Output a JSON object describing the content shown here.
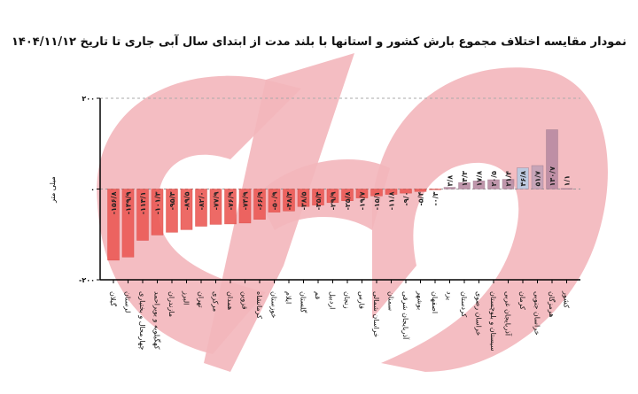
{
  "title": "نمودار مقایسه اختلاف مجموع بارش کشور و استانها با بلند مدت از ابتدای سال آبی جاری تا تاریخ ۱۴۰۴/۱۱/۱۲",
  "chart_data": {
    "type": "bar",
    "title": "نمودار مقایسه اختلاف مجموع بارش کشور و استانها با بلند مدت از ابتدای سال آبی جاری تا تاریخ ۱۴۰۴/۱۱/۱۲",
    "ylabel": "میلی متر",
    "xlabel": "",
    "ylim": [
      -200,
      200
    ],
    "yticks": [
      200,
      0,
      -200
    ],
    "ytick_labels": [
      "۲۰۰",
      "۰",
      "-۲۰۰"
    ],
    "grid": "dashed at 200 and 0",
    "categories": [
      "گیلان",
      "لرستان",
      "چهارمحال و بختیاری",
      "کهگیلویه و بویراحمد",
      "مازندران",
      "البرز",
      "تهران",
      "مرکزی",
      "همدان",
      "قزوین",
      "کرمانشاه",
      "خوزستان",
      "ایلام",
      "گلستان",
      "قم",
      "اردبیل",
      "زنجان",
      "فارس",
      "خراسان شمالی",
      "سمنان",
      "آذربایجان شرقی",
      "بوشهر",
      "اصفهان",
      "یزد",
      "کردستان",
      "خراسان رضوی",
      "سیستان و بلوچستان",
      "آذربایجان غربی",
      "کرمان",
      "خراسان جنوبی",
      "هرمزگان",
      "کشور"
    ],
    "values": [
      -156.8,
      -149.9,
      -113.1,
      -101.3,
      -95.3,
      -89.5,
      -82.0,
      -77.9,
      -76.9,
      -74.9,
      -66.9,
      -50.9,
      -48.3,
      -38.5,
      -35.4,
      -29.9,
      -25.8,
      -19.7,
      -15.1,
      -11.8,
      -9.0,
      -5.4,
      -0.3,
      3.8,
      14.3,
      17.8,
      20.5,
      21.4,
      46.8,
      51.7,
      130.7,
      1.1
    ],
    "value_labels": [
      "-۱۵۶/۸",
      "-۱۴۹/۹",
      "-۱۱۳/۱",
      "-۱۰۱/۳",
      "-۹۵/۳",
      "-۸۹/۵",
      "-۸۲/۰",
      "-۷۷/۹",
      "-۷۶/۹",
      "-۷۴/۹",
      "-۶۶/۹",
      "-۵۰/۹",
      "-۴۸/۳",
      "-۳۸/۵",
      "-۳۵/۴",
      "-۲۹/۹",
      "-۲۵/۸",
      "-۱۹/۷",
      "-۱۵/۱",
      "-۱۱/۸",
      "-۹/۰",
      "-۵/۴",
      "-۰/۳",
      "۳/۸",
      "۱۴/۳",
      "۱۷/۸",
      "۲۰/۵",
      "۲۱/۴",
      "۴۶/۸",
      "۵۱/۷",
      "۱۳۰/۷",
      "۱/۱"
    ],
    "colors": {
      "negative": "#ec5a56",
      "positive": "#b98ba2",
      "highlight": "#b7cbe3",
      "watermark": "#f3b6bb"
    },
    "highlight_categories": [
      "کرمان"
    ]
  }
}
